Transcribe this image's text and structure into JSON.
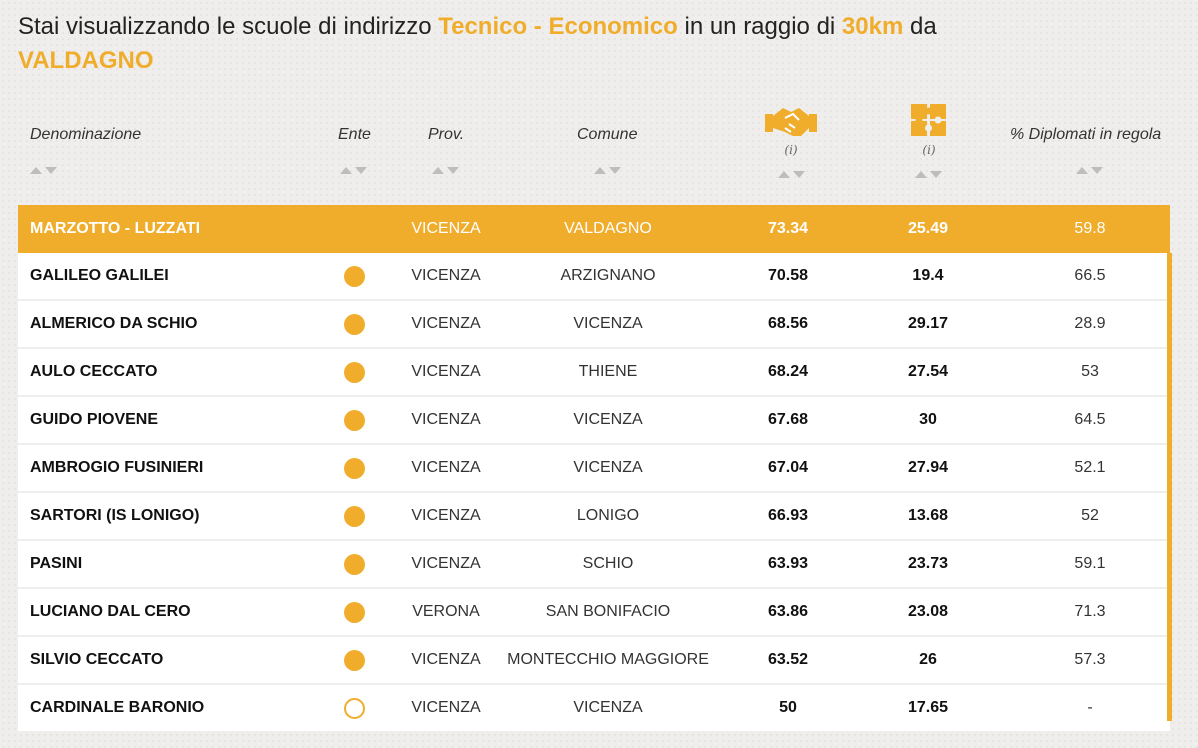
{
  "headline": {
    "prefix": "Stai visualizzando le scuole di indirizzo ",
    "indirizzo": "Tecnico - Economico",
    "middle": " in un raggio di ",
    "raggio": "30km",
    "suffix": " da",
    "citta": "VALDAGNO"
  },
  "columns": {
    "denominazione": "Denominazione",
    "ente": "Ente",
    "prov": "Prov.",
    "comune": "Comune",
    "col5_info": "(i)",
    "col6_info": "(i)",
    "diplomati": "% Diplomati in regola"
  },
  "icons": {
    "col5": "handshake-icon",
    "col6": "puzzle-icon"
  },
  "colors": {
    "accent": "#f0ad2c",
    "row_bg": "#ffffff",
    "page_bg": "#efeeec"
  },
  "rows": [
    {
      "name": "MARZOTTO - LUZZATI",
      "ente": "",
      "prov": "VICENZA",
      "comune": "VALDAGNO",
      "v1": "73.34",
      "v2": "25.49",
      "v3": "59.8"
    },
    {
      "name": "GALILEO GALILEI",
      "ente": "statale",
      "prov": "VICENZA",
      "comune": "ARZIGNANO",
      "v1": "70.58",
      "v2": "19.4",
      "v3": "66.5"
    },
    {
      "name": "ALMERICO DA SCHIO",
      "ente": "statale",
      "prov": "VICENZA",
      "comune": "VICENZA",
      "v1": "68.56",
      "v2": "29.17",
      "v3": "28.9"
    },
    {
      "name": "AULO CECCATO",
      "ente": "statale",
      "prov": "VICENZA",
      "comune": "THIENE",
      "v1": "68.24",
      "v2": "27.54",
      "v3": "53"
    },
    {
      "name": "GUIDO PIOVENE",
      "ente": "statale",
      "prov": "VICENZA",
      "comune": "VICENZA",
      "v1": "67.68",
      "v2": "30",
      "v3": "64.5"
    },
    {
      "name": "AMBROGIO FUSINIERI",
      "ente": "statale",
      "prov": "VICENZA",
      "comune": "VICENZA",
      "v1": "67.04",
      "v2": "27.94",
      "v3": "52.1"
    },
    {
      "name": "SARTORI (IS LONIGO)",
      "ente": "statale",
      "prov": "VICENZA",
      "comune": "LONIGO",
      "v1": "66.93",
      "v2": "13.68",
      "v3": "52"
    },
    {
      "name": "PASINI",
      "ente": "statale",
      "prov": "VICENZA",
      "comune": "SCHIO",
      "v1": "63.93",
      "v2": "23.73",
      "v3": "59.1"
    },
    {
      "name": "LUCIANO DAL CERO",
      "ente": "statale",
      "prov": "VERONA",
      "comune": "SAN BONIFACIO",
      "v1": "63.86",
      "v2": "23.08",
      "v3": "71.3"
    },
    {
      "name": "SILVIO CECCATO",
      "ente": "statale",
      "prov": "VICENZA",
      "comune": "MONTECCHIO MAGGIORE",
      "v1": "63.52",
      "v2": "26",
      "v3": "57.3"
    },
    {
      "name": "CARDINALE BARONIO",
      "ente": "paritaria",
      "prov": "VICENZA",
      "comune": "VICENZA",
      "v1": "50",
      "v2": "17.65",
      "v3": "-"
    }
  ]
}
